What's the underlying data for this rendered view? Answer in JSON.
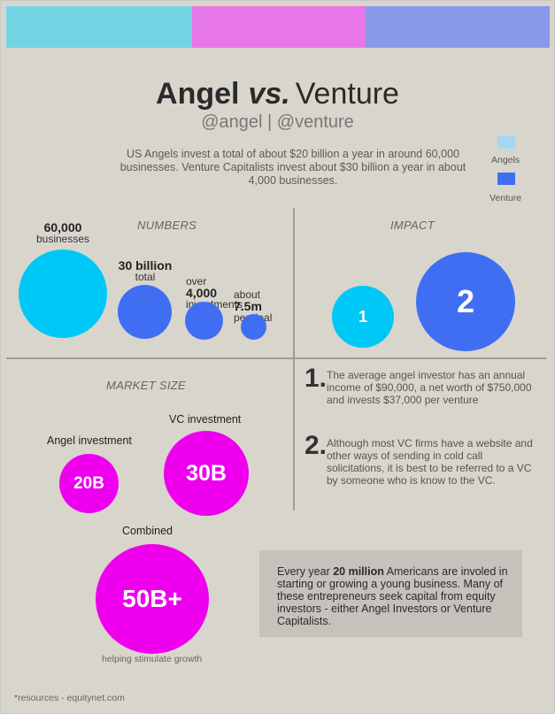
{
  "colors": {
    "bar1": "#73d5e4",
    "bar2": "#e777e7",
    "bar3": "#8899ea",
    "angels": "#00c8f6",
    "venture": "#3f6ef3",
    "market": "#ee00ee",
    "background": "#d8d5cc"
  },
  "header": {
    "title_angel": "Angel",
    "title_vs": "vs.",
    "title_venture": "Venture",
    "handles": "@angel | @venture",
    "intro": "US Angels invest a total of about $20 billion a year in around 60,000 businesses.  Venture Capitalists invest about $30 billion a year in about 4,000 businesses."
  },
  "legend": [
    {
      "label": "Angels",
      "color": "#a6d6f4"
    },
    {
      "label": "Venture",
      "color": "#3f6ef3"
    }
  ],
  "numbers": {
    "heading": "NUMBERS",
    "items": [
      {
        "value": "60,000",
        "label": "businesses"
      },
      {
        "value": "30 billion",
        "label": "total"
      },
      {
        "prefix": "over",
        "value": "4,000",
        "label": "investments"
      },
      {
        "prefix": "about",
        "value": "7.5m",
        "label": "per deal"
      }
    ]
  },
  "impact": {
    "heading": "IMPACT",
    "circles": [
      "1",
      "2"
    ],
    "points": [
      {
        "num": "1.",
        "text": "The average angel investor has an annual income of $90,000, a net worth of $750,000 and invests $37,000 per venture"
      },
      {
        "num": "2.",
        "text": "Although most VC firms have a website and other ways of sending in cold call solicitations, it is best to be referred to a VC by someone who is know to the VC."
      }
    ]
  },
  "market": {
    "heading": "MARKET SIZE",
    "angel_label": "Angel investment",
    "angel_value": "20B",
    "vc_label": "VC investment",
    "vc_value": "30B",
    "combined_label": "Combined",
    "combined_value": "50B+",
    "caption": "helping stimulate growth"
  },
  "callout": {
    "pre": "Every year ",
    "highlight": "20 million",
    "post": " Americans are involed in starting or growing a young business.  Many of these entrepreneurs seek capital from equity investors - either Angel Investors or Venture Capitalists."
  },
  "footer": "*resources - equitynet.com"
}
